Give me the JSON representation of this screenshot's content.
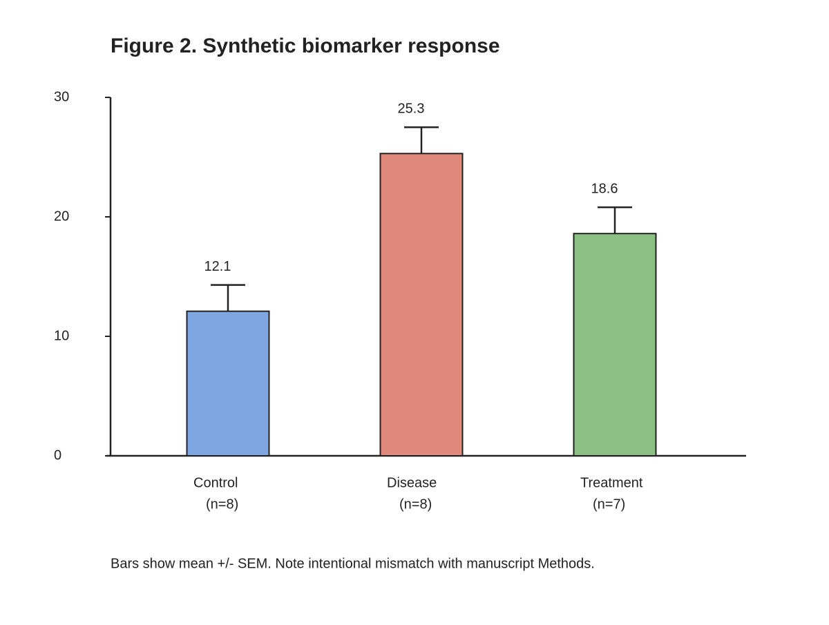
{
  "chart_data": {
    "type": "bar",
    "title": "Figure 2. Synthetic biomarker response",
    "categories": [
      "Control",
      "Disease",
      "Treatment"
    ],
    "group_sizes": [
      "(n=8)",
      "(n=8)",
      "(n=7)"
    ],
    "values": [
      12.1,
      25.3,
      18.6
    ],
    "errors": [
      2.2,
      2.2,
      2.2
    ],
    "colors": [
      "#7ea6e0",
      "#e0897c",
      "#8cc084"
    ],
    "ylim": [
      0,
      30
    ],
    "yticks": [
      0,
      10,
      20,
      30
    ],
    "grid": false,
    "footnote": "Bars show mean +/- SEM. Note intentional mismatch with manuscript Methods."
  }
}
